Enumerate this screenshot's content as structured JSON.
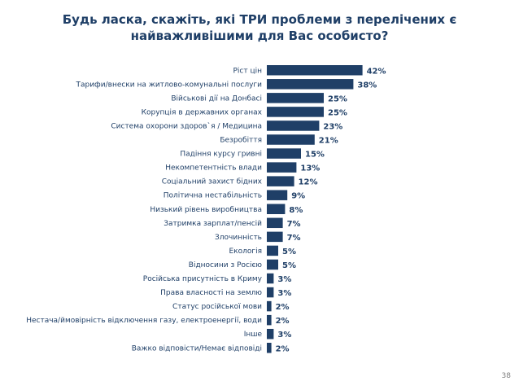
{
  "chart_data": {
    "type": "bar",
    "orientation": "horizontal",
    "title_lines": [
      "Будь ласка, скажіть, які ТРИ проблеми з перелічених є",
      "найважливішими для Вас особисто?"
    ],
    "categories": [
      "Ріст цін",
      "Тарифи/внески на житлово-комунальні послуги",
      "Військові дії на Донбасі",
      "Корупція в державних органах",
      "Система охорони здоров`я / Медицина",
      "Безробіття",
      "Падіння курсу гривні",
      "Некомпетентність влади",
      "Соціальний захист бідних",
      "Політична нестабільність",
      "Низький рівень виробництва",
      "Затримка зарплат/пенсій",
      "Злочинність",
      "Екологія",
      "Відносини з Росією",
      "Російська присутність в Криму",
      "Права власності на землю",
      "Статус російської мови",
      "Нестача/ймовірність відключення газу, електроенергії, води",
      "Інше",
      "Важко відповісти/Немає відповіді"
    ],
    "values": [
      42,
      38,
      25,
      25,
      23,
      21,
      15,
      13,
      12,
      9,
      8,
      7,
      7,
      5,
      5,
      3,
      3,
      2,
      2,
      3,
      2
    ],
    "value_suffix": "%",
    "color": "#1f3f67"
  },
  "page_number": "38"
}
